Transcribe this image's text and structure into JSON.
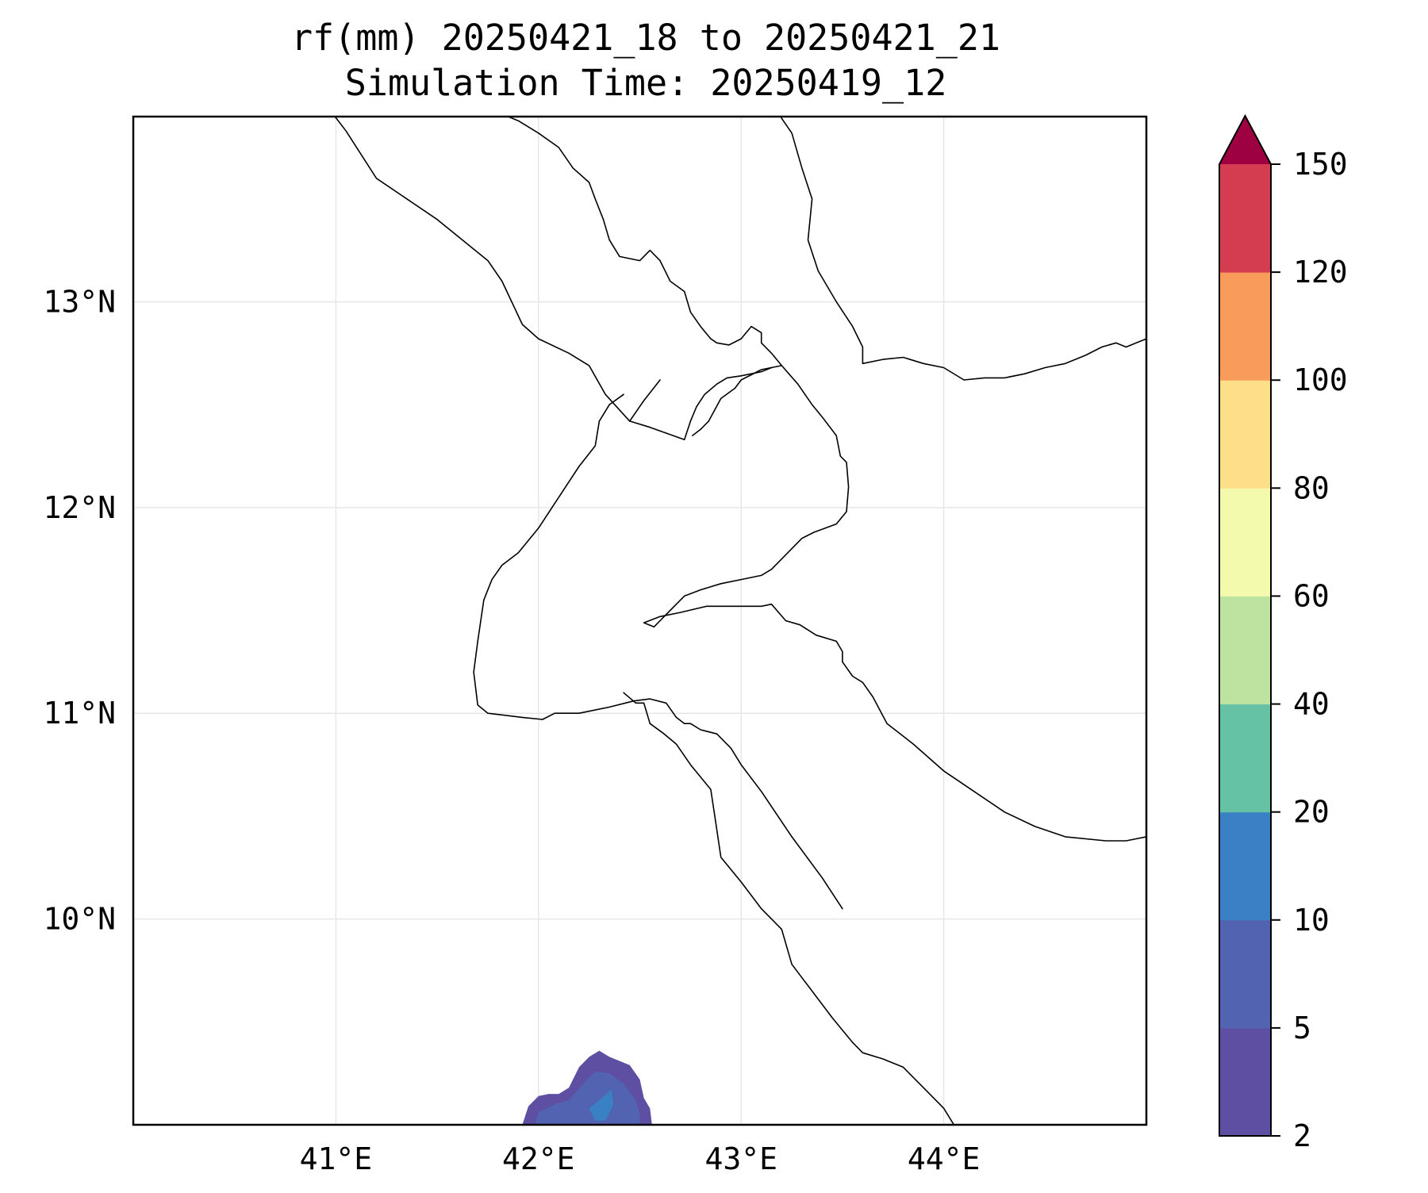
{
  "title": {
    "line1": "rf(mm) 20250421_18 to 20250421_21",
    "line2": "Simulation Time: 20250419_12"
  },
  "map": {
    "lon_range": [
      40.0,
      45.0
    ],
    "lat_range": [
      9.0,
      13.9
    ],
    "lon_ticks": [
      {
        "value": 41,
        "label": "41°E"
      },
      {
        "value": 42,
        "label": "42°E"
      },
      {
        "value": 43,
        "label": "43°E"
      },
      {
        "value": 44,
        "label": "44°E"
      }
    ],
    "lat_ticks": [
      {
        "value": 10,
        "label": "10°N"
      },
      {
        "value": 11,
        "label": "11°N"
      },
      {
        "value": 12,
        "label": "12°N"
      },
      {
        "value": 13,
        "label": "13°N"
      }
    ],
    "gridlines": true,
    "coastlines_and_borders": [
      [
        [
          40.98,
          13.92
        ],
        [
          41.05,
          13.83
        ],
        [
          41.2,
          13.6
        ],
        [
          41.5,
          13.4
        ],
        [
          41.75,
          13.2
        ],
        [
          41.82,
          13.1
        ],
        [
          41.92,
          12.89
        ],
        [
          42.0,
          12.82
        ],
        [
          42.15,
          12.75
        ],
        [
          42.25,
          12.69
        ],
        [
          42.33,
          12.55
        ],
        [
          42.45,
          12.42
        ],
        [
          42.55,
          12.39
        ],
        [
          42.72,
          12.33
        ]
      ],
      [
        [
          42.76,
          12.35
        ],
        [
          42.8,
          12.38
        ],
        [
          42.84,
          12.42
        ],
        [
          42.9,
          12.53
        ],
        [
          42.97,
          12.58
        ],
        [
          43.0,
          12.62
        ],
        [
          43.1,
          12.67
        ],
        [
          43.2,
          12.69
        ]
      ],
      [
        [
          43.2,
          12.69
        ],
        [
          43.28,
          12.6
        ],
        [
          43.35,
          12.5
        ],
        [
          43.4,
          12.44
        ],
        [
          43.47,
          12.35
        ],
        [
          43.49,
          12.25
        ],
        [
          43.52,
          12.22
        ],
        [
          43.53,
          12.1
        ],
        [
          43.52,
          11.98
        ],
        [
          43.47,
          11.92
        ],
        [
          43.36,
          11.88
        ],
        [
          43.3,
          11.85
        ],
        [
          43.2,
          11.75
        ],
        [
          43.15,
          11.7
        ],
        [
          43.1,
          11.67
        ],
        [
          43.0,
          11.65
        ],
        [
          42.9,
          11.63
        ],
        [
          42.8,
          11.6
        ],
        [
          42.72,
          11.57
        ],
        [
          42.65,
          11.5
        ],
        [
          42.6,
          11.45
        ],
        [
          42.57,
          11.42
        ],
        [
          42.52,
          11.44
        ],
        [
          42.6,
          11.47
        ],
        [
          42.7,
          11.49
        ],
        [
          42.83,
          11.52
        ],
        [
          43.0,
          11.52
        ],
        [
          43.1,
          11.52
        ],
        [
          43.15,
          11.53
        ],
        [
          43.22,
          11.45
        ],
        [
          43.29,
          11.43
        ],
        [
          43.37,
          11.38
        ],
        [
          43.47,
          11.35
        ],
        [
          43.5,
          11.3
        ],
        [
          43.5,
          11.25
        ],
        [
          43.55,
          11.18
        ],
        [
          43.6,
          11.15
        ],
        [
          43.65,
          11.08
        ],
        [
          43.72,
          10.95
        ],
        [
          43.85,
          10.85
        ],
        [
          44.0,
          10.72
        ],
        [
          44.15,
          10.62
        ],
        [
          44.3,
          10.52
        ],
        [
          44.45,
          10.45
        ],
        [
          44.6,
          10.4
        ],
        [
          44.8,
          10.38
        ],
        [
          44.9,
          10.38
        ],
        [
          45.0,
          10.4
        ]
      ],
      [
        [
          43.2,
          12.69
        ],
        [
          43.15,
          12.75
        ],
        [
          43.1,
          12.8
        ],
        [
          43.1,
          12.85
        ],
        [
          43.05,
          12.88
        ],
        [
          43.0,
          12.82
        ],
        [
          42.94,
          12.79
        ],
        [
          42.88,
          12.8
        ],
        [
          42.85,
          12.82
        ],
        [
          42.8,
          12.88
        ],
        [
          42.75,
          12.95
        ],
        [
          42.72,
          13.05
        ],
        [
          42.65,
          13.1
        ],
        [
          42.6,
          13.2
        ],
        [
          42.55,
          13.25
        ],
        [
          42.5,
          13.2
        ],
        [
          42.4,
          13.22
        ],
        [
          42.35,
          13.3
        ],
        [
          42.32,
          13.4
        ],
        [
          42.28,
          13.5
        ],
        [
          42.25,
          13.58
        ],
        [
          42.17,
          13.65
        ],
        [
          42.1,
          13.75
        ],
        [
          42.0,
          13.82
        ],
        [
          41.9,
          13.88
        ],
        [
          41.8,
          13.92
        ]
      ],
      [
        [
          43.18,
          13.92
        ],
        [
          43.25,
          13.82
        ],
        [
          43.3,
          13.65
        ],
        [
          43.35,
          13.5
        ],
        [
          43.33,
          13.3
        ],
        [
          43.38,
          13.15
        ],
        [
          43.47,
          13.0
        ],
        [
          43.55,
          12.88
        ],
        [
          43.6,
          12.78
        ],
        [
          43.6,
          12.7
        ],
        [
          43.7,
          12.72
        ],
        [
          43.8,
          12.73
        ],
        [
          43.9,
          12.7
        ],
        [
          44.0,
          12.68
        ],
        [
          44.1,
          12.62
        ],
        [
          44.2,
          12.63
        ],
        [
          44.3,
          12.63
        ],
        [
          44.4,
          12.65
        ],
        [
          44.5,
          12.68
        ],
        [
          44.6,
          12.7
        ],
        [
          44.7,
          12.74
        ],
        [
          44.78,
          12.78
        ],
        [
          44.85,
          12.8
        ],
        [
          44.9,
          12.78
        ],
        [
          44.95,
          12.8
        ],
        [
          45.0,
          12.82
        ]
      ],
      [
        [
          42.42,
          11.1
        ],
        [
          42.48,
          11.05
        ],
        [
          42.52,
          11.05
        ],
        [
          42.55,
          10.95
        ],
        [
          42.62,
          10.9
        ],
        [
          42.68,
          10.85
        ],
        [
          42.75,
          10.75
        ],
        [
          42.85,
          10.63
        ],
        [
          42.87,
          10.5
        ],
        [
          42.9,
          10.3
        ],
        [
          43.0,
          10.18
        ],
        [
          43.1,
          10.05
        ],
        [
          43.2,
          9.95
        ],
        [
          43.25,
          9.78
        ],
        [
          43.35,
          9.65
        ],
        [
          43.45,
          9.52
        ],
        [
          43.55,
          9.4
        ],
        [
          43.6,
          9.35
        ],
        [
          43.7,
          9.32
        ],
        [
          43.8,
          9.28
        ],
        [
          43.9,
          9.18
        ],
        [
          44.0,
          9.08
        ],
        [
          44.05,
          9.0
        ]
      ],
      [
        [
          42.02,
          10.97
        ],
        [
          42.08,
          11.0
        ],
        [
          42.2,
          11.0
        ],
        [
          42.35,
          11.03
        ],
        [
          42.47,
          11.06
        ],
        [
          42.55,
          11.07
        ],
        [
          42.63,
          11.05
        ],
        [
          42.68,
          10.98
        ],
        [
          42.72,
          10.95
        ],
        [
          42.75,
          10.95
        ],
        [
          42.8,
          10.92
        ],
        [
          42.88,
          10.9
        ],
        [
          42.95,
          10.83
        ],
        [
          43.0,
          10.75
        ],
        [
          43.1,
          10.62
        ],
        [
          43.25,
          10.4
        ],
        [
          43.4,
          10.2
        ],
        [
          43.5,
          10.05
        ]
      ],
      [
        [
          42.02,
          10.97
        ],
        [
          41.92,
          10.98
        ],
        [
          41.75,
          11.0
        ],
        [
          41.7,
          11.04
        ],
        [
          41.68,
          11.2
        ],
        [
          41.7,
          11.35
        ],
        [
          41.73,
          11.55
        ],
        [
          41.77,
          11.65
        ],
        [
          41.82,
          11.72
        ],
        [
          41.9,
          11.78
        ],
        [
          42.0,
          11.9
        ],
        [
          42.1,
          12.05
        ],
        [
          42.2,
          12.2
        ],
        [
          42.28,
          12.3
        ],
        [
          42.3,
          12.42
        ],
        [
          42.35,
          12.5
        ],
        [
          42.42,
          12.55
        ]
      ],
      [
        [
          42.45,
          12.42
        ],
        [
          42.52,
          12.52
        ],
        [
          42.6,
          12.62
        ]
      ],
      [
        [
          42.72,
          12.33
        ],
        [
          42.75,
          12.42
        ],
        [
          42.78,
          12.49
        ],
        [
          42.82,
          12.55
        ],
        [
          42.88,
          12.6
        ],
        [
          42.93,
          12.63
        ],
        [
          43.0,
          12.64
        ],
        [
          43.1,
          12.66
        ],
        [
          43.15,
          12.68
        ]
      ]
    ]
  },
  "rain": {
    "contours": [
      {
        "level": "2-5",
        "color": "#5e4fa2",
        "points": [
          [
            41.92,
            9.0
          ],
          [
            41.95,
            9.09
          ],
          [
            42.0,
            9.14
          ],
          [
            42.05,
            9.15
          ],
          [
            42.1,
            9.15
          ],
          [
            42.15,
            9.18
          ],
          [
            42.2,
            9.28
          ],
          [
            42.25,
            9.33
          ],
          [
            42.3,
            9.36
          ],
          [
            42.35,
            9.33
          ],
          [
            42.45,
            9.29
          ],
          [
            42.5,
            9.22
          ],
          [
            42.52,
            9.13
          ],
          [
            42.55,
            9.08
          ],
          [
            42.56,
            9.0
          ]
        ]
      },
      {
        "level": "5-10",
        "color": "#5163b1",
        "points": [
          [
            41.98,
            9.0
          ],
          [
            42.0,
            9.06
          ],
          [
            42.08,
            9.1
          ],
          [
            42.15,
            9.12
          ],
          [
            42.22,
            9.2
          ],
          [
            42.28,
            9.26
          ],
          [
            42.35,
            9.25
          ],
          [
            42.42,
            9.2
          ],
          [
            42.48,
            9.12
          ],
          [
            42.5,
            9.05
          ],
          [
            42.5,
            9.0
          ]
        ]
      },
      {
        "level": "10-20",
        "color": "#3a80c4",
        "points": [
          [
            42.25,
            9.08
          ],
          [
            42.3,
            9.12
          ],
          [
            42.36,
            9.17
          ],
          [
            42.37,
            9.1
          ],
          [
            42.33,
            9.02
          ],
          [
            42.28,
            9.02
          ]
        ]
      }
    ]
  },
  "colorbar": {
    "levels": [
      2,
      5,
      10,
      20,
      40,
      60,
      80,
      100,
      120,
      150
    ],
    "colors": [
      "#5e4fa2",
      "#5163b1",
      "#3a80c4",
      "#66c2a5",
      "#bde3a0",
      "#f4faad",
      "#fddf8a",
      "#f99b5b",
      "#d43d4f"
    ],
    "extend_color": "#9e0142",
    "tick_labels": [
      "2",
      "5",
      "10",
      "20",
      "40",
      "60",
      "80",
      "100",
      "120",
      "150"
    ]
  }
}
